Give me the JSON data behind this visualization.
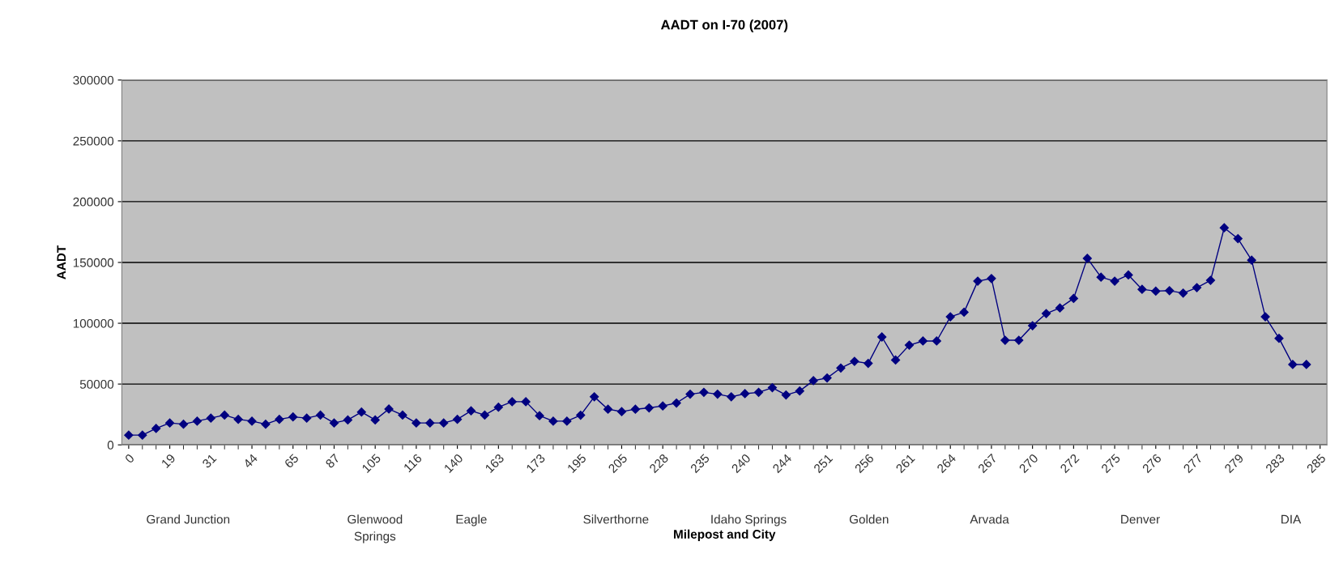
{
  "chart_data": {
    "type": "line",
    "title": "AADT on I-70 (2007)",
    "xlabel": "Milepost and City",
    "ylabel": "AADT",
    "categories": [
      "0",
      null,
      null,
      "19",
      null,
      null,
      "31",
      null,
      null,
      "44",
      null,
      null,
      "65",
      null,
      null,
      "87",
      null,
      null,
      "105",
      null,
      null,
      "116",
      null,
      null,
      "140",
      null,
      null,
      "163",
      null,
      null,
      "173",
      null,
      null,
      "195",
      null,
      null,
      "205",
      null,
      null,
      "228",
      null,
      null,
      "235",
      null,
      null,
      "240",
      null,
      null,
      "244",
      null,
      null,
      "251",
      null,
      null,
      "256",
      null,
      null,
      "261",
      null,
      null,
      "264",
      null,
      null,
      "267",
      null,
      null,
      "270",
      null,
      null,
      "272",
      null,
      null,
      "275",
      null,
      null,
      "276",
      null,
      null,
      "277",
      null,
      null,
      "279",
      null,
      null,
      "283",
      null,
      null,
      "285"
    ],
    "series": [
      {
        "color": "#000080",
        "values": [
          8000,
          8000,
          13500,
          18000,
          17000,
          19500,
          22000,
          24500,
          21000,
          19500,
          17000,
          21000,
          23000,
          22000,
          24500,
          18000,
          20500,
          27000,
          20500,
          29500,
          24500,
          18000,
          18000,
          18000,
          21000,
          28000,
          24500,
          31000,
          35500,
          35500,
          24000,
          19500,
          19500,
          24400,
          39500,
          29300,
          27300,
          29300,
          30400,
          32000,
          34400,
          41700,
          43200,
          41700,
          39500,
          42100,
          43200,
          47000,
          41000,
          44300,
          52800,
          55000,
          63200,
          68700,
          67000,
          88700,
          69800,
          82000,
          85400,
          85400,
          105300,
          109100,
          134600,
          136800,
          86000,
          86000,
          98000,
          108000,
          112600,
          120400,
          153400,
          137900,
          134600,
          139700,
          127900,
          126400,
          126800,
          124800,
          129300,
          135300,
          178500,
          169600,
          151900,
          105300,
          87600,
          66100,
          66100,
          null
        ]
      }
    ],
    "ylim": [
      0,
      300000
    ],
    "yticks": [
      0,
      50000,
      100000,
      150000,
      200000,
      250000,
      300000
    ],
    "grid": "y",
    "marker": "diamond",
    "line_style": "solid",
    "annotations": [
      "Grand Junction",
      "Glenwood\nSprings",
      "Eagle",
      "Silverthorne",
      "Idaho Springs",
      "Golden",
      "Arvada",
      "Denver",
      "DIA"
    ]
  }
}
